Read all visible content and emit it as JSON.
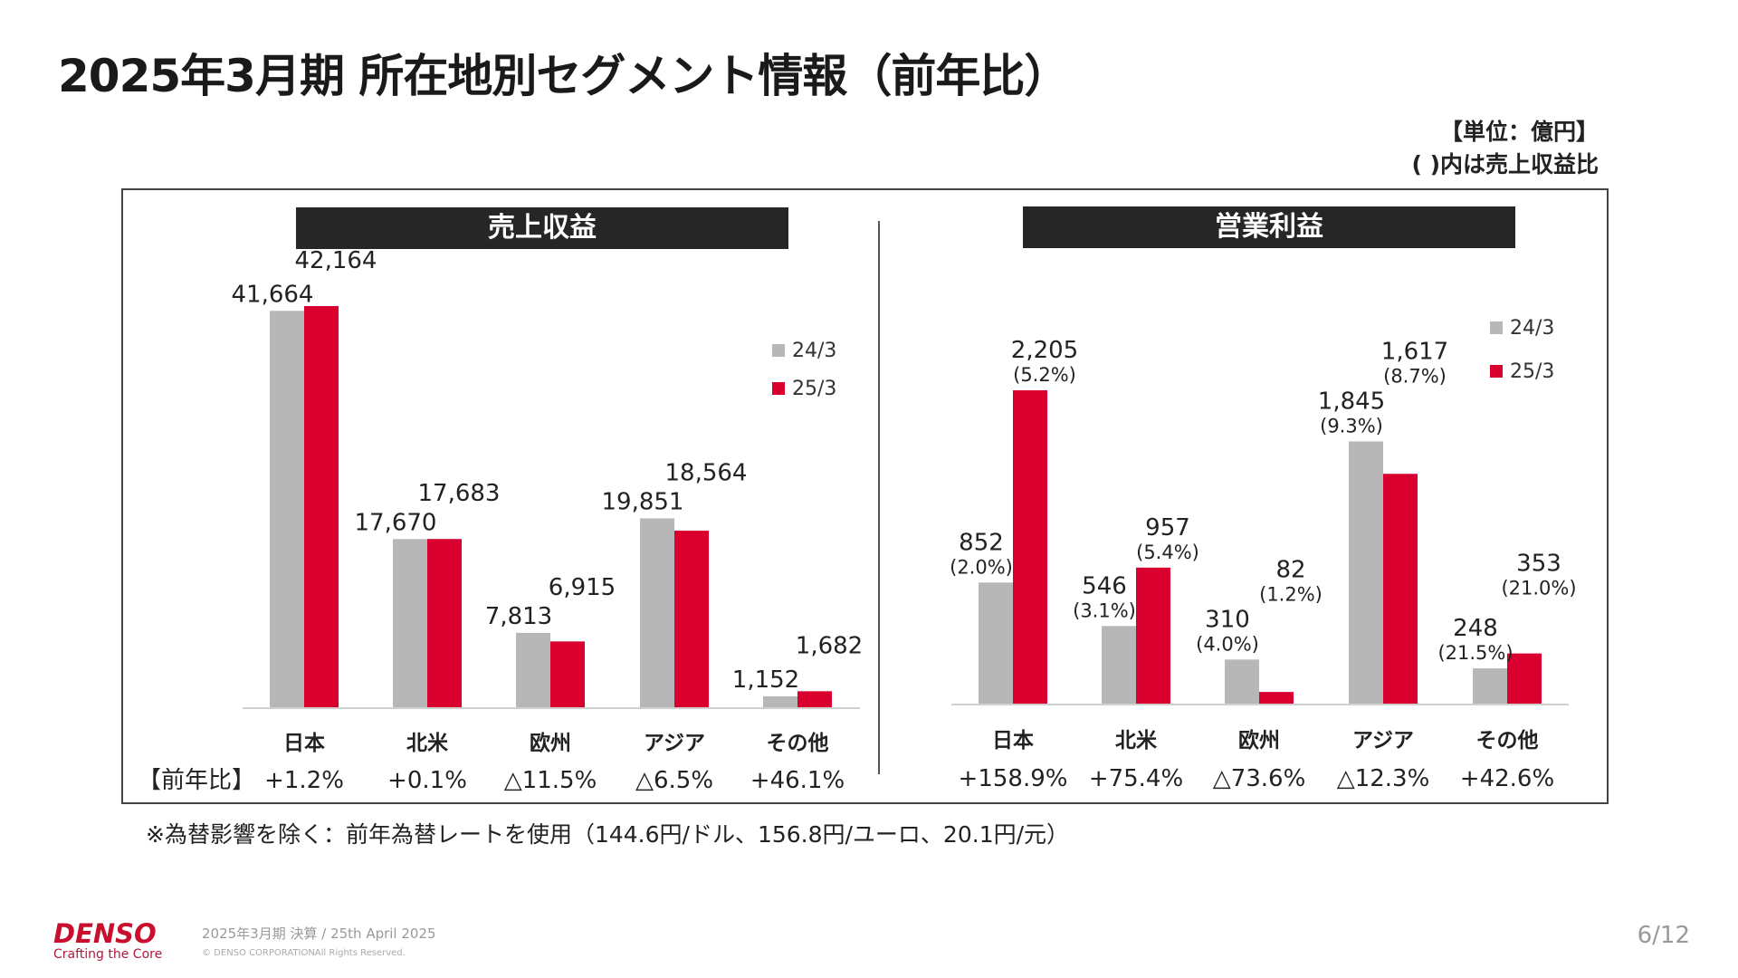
{
  "title": "2025年3月期 所在地別セグメント情報（前年比）",
  "unit": {
    "line1": "【単位：億円】",
    "line2": "( )内は売上収益比"
  },
  "footnote": "※為替影響を除く：前年為替レートを使用（144.6円/ドル、156.8円/ユーロ、20.1円/元）",
  "footer": {
    "logo": "DENSO",
    "tagline": "Crafting the Core",
    "date": "2025年3月期 決算 / 25th April 2025",
    "copyright": "© DENSO CORPORATIONAll Rights Reserved.",
    "page": "6/12"
  },
  "colors": {
    "prev": "#b7b7b7",
    "curr": "#d9002f",
    "header": "#262626"
  },
  "chart_data": [
    {
      "type": "bar",
      "title": "売上収益",
      "categories": [
        "日本",
        "北米",
        "欧州",
        "アジア",
        "その他"
      ],
      "series": [
        {
          "name": "24/3",
          "values": [
            41664,
            17670,
            7813,
            19851,
            1152
          ],
          "labels": [
            "41,664",
            "17,670",
            "7,813",
            "19,851",
            "1,152"
          ]
        },
        {
          "name": "25/3",
          "values": [
            42164,
            17683,
            6915,
            18564,
            1682
          ],
          "labels": [
            "42,164",
            "17,683",
            "6,915",
            "18,564",
            "1,682"
          ]
        }
      ],
      "yoy_label": "【前年比】",
      "yoy": [
        "+1.2%",
        "+0.1%",
        "△11.5%",
        "△6.5%",
        "+46.1%"
      ],
      "legend": "right",
      "ylim": [
        0,
        42164
      ]
    },
    {
      "type": "bar",
      "title": "営業利益",
      "categories": [
        "日本",
        "北米",
        "欧州",
        "アジア",
        "その他"
      ],
      "series": [
        {
          "name": "24/3",
          "values": [
            852,
            546,
            310,
            1845,
            248
          ],
          "labels": [
            "852",
            "546",
            "310",
            "1,845",
            "248"
          ],
          "ratios": [
            "(2.0%)",
            "(3.1%)",
            "(4.0%)",
            "(9.3%)",
            "(21.5%)"
          ]
        },
        {
          "name": "25/3",
          "values": [
            2205,
            957,
            82,
            1617,
            353
          ],
          "labels": [
            "2,205",
            "957",
            "82",
            "1,617",
            "353"
          ],
          "ratios": [
            "(5.2%)",
            "(5.4%)",
            "(1.2%)",
            "(8.7%)",
            "(21.0%)"
          ]
        }
      ],
      "yoy": [
        "+158.9%",
        "+75.4%",
        "△73.6%",
        "△12.3%",
        "+42.6%"
      ],
      "legend": "top-right",
      "ylim": [
        0,
        2205
      ]
    }
  ]
}
